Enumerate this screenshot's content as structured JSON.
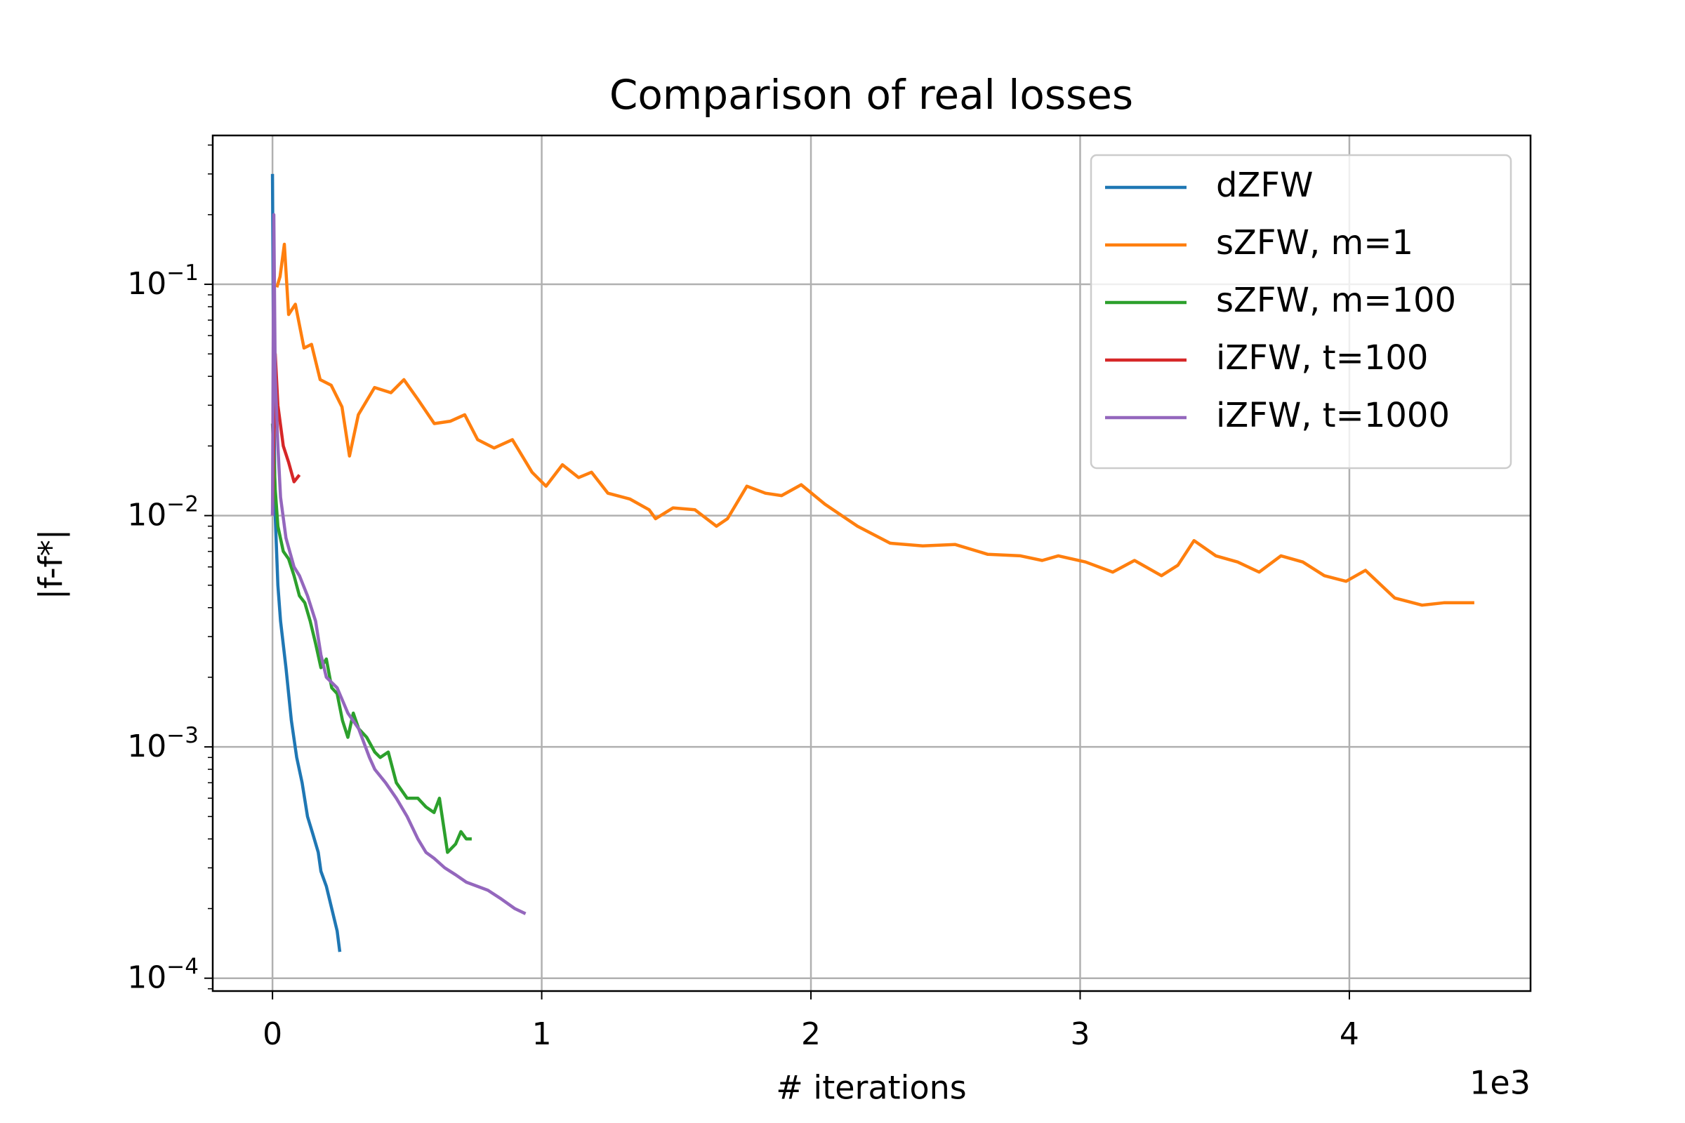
{
  "chart_data": {
    "type": "line",
    "title": "Comparison of real losses",
    "x_label": "# iterations",
    "y_label": "|f-f*|",
    "x_offset_label": "1e3",
    "yscale": "log",
    "grid": true,
    "legend": "upper right",
    "xlim": [
      -222,
      4673
    ],
    "ylim": [
      8.8e-05,
      0.44
    ],
    "xticks": [
      0,
      {
        "value": 1000,
        "label": "1"
      },
      {
        "value": 2000,
        "label": "2"
      },
      {
        "value": 3000,
        "label": "3"
      },
      {
        "value": 4000,
        "label": "4"
      }
    ],
    "yticks": [
      {
        "value": 0.0001,
        "label": "10",
        "exponent": "−4"
      },
      {
        "value": 0.001,
        "label": "10",
        "exponent": "−3"
      },
      {
        "value": 0.01,
        "label": "10",
        "exponent": "−2"
      },
      {
        "value": 0.1,
        "label": "10",
        "exponent": "−1"
      }
    ],
    "series": [
      {
        "name": "dZFW",
        "color": "#1f77b4",
        "x": [
          0,
          5,
          10,
          20,
          30,
          50,
          70,
          90,
          110,
          130,
          150,
          170,
          180,
          200,
          220,
          240,
          250
        ],
        "values": [
          0.3,
          0.03,
          0.01,
          0.005,
          0.0035,
          0.0022,
          0.0013,
          0.0009,
          0.0007,
          0.0005,
          0.00042,
          0.00035,
          0.00029,
          0.00025,
          0.0002,
          0.00016,
          0.00013
        ]
      },
      {
        "name": "sZFW, m=1",
        "color": "#ff7f0e",
        "x": [
          16,
          28,
          44,
          60,
          85,
          117,
          145,
          177,
          218,
          258,
          286,
          319,
          379,
          440,
          488,
          540,
          601,
          661,
          714,
          762,
          823,
          891,
          964,
          1016,
          1077,
          1137,
          1185,
          1246,
          1327,
          1399,
          1423,
          1488,
          1569,
          1649,
          1690,
          1762,
          1831,
          1891,
          1964,
          2052,
          2173,
          2294,
          2415,
          2536,
          2657,
          2778,
          2859,
          2919,
          3020,
          3121,
          3202,
          3302,
          3363,
          3423,
          3504,
          3585,
          3665,
          3746,
          3827,
          3907,
          3988,
          4060,
          4169,
          4270,
          4351,
          4464
        ],
        "values": [
          0.097,
          0.108,
          0.149,
          0.074,
          0.082,
          0.053,
          0.055,
          0.0387,
          0.0366,
          0.0295,
          0.0181,
          0.0273,
          0.0358,
          0.034,
          0.0387,
          0.0318,
          0.025,
          0.0256,
          0.0273,
          0.0213,
          0.0196,
          0.0213,
          0.0154,
          0.0134,
          0.0166,
          0.0146,
          0.0154,
          0.0125,
          0.0118,
          0.0106,
          0.0097,
          0.0108,
          0.0106,
          0.009,
          0.0097,
          0.0134,
          0.0125,
          0.0122,
          0.0136,
          0.0112,
          0.009,
          0.0076,
          0.0074,
          0.0075,
          0.0068,
          0.0067,
          0.0064,
          0.0067,
          0.0063,
          0.0057,
          0.0064,
          0.0055,
          0.0061,
          0.0078,
          0.0067,
          0.0063,
          0.0057,
          0.0067,
          0.0063,
          0.0055,
          0.0052,
          0.0058,
          0.0044,
          0.0041,
          0.0042,
          0.0042
        ]
      },
      {
        "name": "sZFW, m=100",
        "color": "#2ca02c",
        "x": [
          0,
          10,
          20,
          40,
          60,
          80,
          100,
          120,
          140,
          160,
          180,
          200,
          220,
          240,
          260,
          280,
          300,
          320,
          350,
          380,
          400,
          430,
          460,
          500,
          540,
          570,
          600,
          620,
          650,
          680,
          700,
          720,
          740
        ],
        "values": [
          0.025,
          0.013,
          0.009,
          0.007,
          0.0065,
          0.0055,
          0.0045,
          0.0042,
          0.0035,
          0.0028,
          0.0022,
          0.0024,
          0.0018,
          0.0017,
          0.0013,
          0.0011,
          0.0014,
          0.0012,
          0.0011,
          0.00095,
          0.0009,
          0.00095,
          0.0007,
          0.0006,
          0.0006,
          0.00055,
          0.00052,
          0.0006,
          0.00035,
          0.00038,
          0.00043,
          0.0004,
          0.0004
        ]
      },
      {
        "name": "iZFW, t=100",
        "color": "#d62728",
        "x": [
          0,
          10,
          20,
          40,
          60,
          80,
          100
        ],
        "values": [
          0.01,
          0.05,
          0.03,
          0.02,
          0.017,
          0.014,
          0.015
        ]
      },
      {
        "name": "iZFW, t=1000",
        "color": "#9467bd",
        "x": [
          0,
          5,
          10,
          20,
          30,
          50,
          80,
          100,
          130,
          160,
          180,
          200,
          240,
          280,
          320,
          360,
          380,
          420,
          460,
          500,
          540,
          570,
          600,
          640,
          680,
          720,
          760,
          800,
          850,
          900,
          940
        ],
        "values": [
          0.01,
          0.2,
          0.04,
          0.02,
          0.012,
          0.008,
          0.006,
          0.0055,
          0.0045,
          0.0035,
          0.0025,
          0.002,
          0.0018,
          0.0014,
          0.0012,
          0.0009,
          0.0008,
          0.0007,
          0.0006,
          0.0005,
          0.0004,
          0.00035,
          0.00033,
          0.0003,
          0.00028,
          0.00026,
          0.00025,
          0.00024,
          0.00022,
          0.0002,
          0.00019
        ]
      }
    ]
  }
}
